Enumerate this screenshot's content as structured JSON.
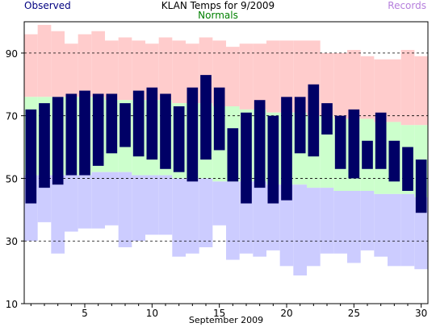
{
  "chart_data": {
    "type": "bar",
    "title": "KLAN Temps for 9/2009",
    "xlabel": "September 2009",
    "ylabel": "",
    "legend": [
      {
        "name": "Observed",
        "color": "#000080"
      },
      {
        "name": "Normals",
        "color": "#008000"
      },
      {
        "name": "Records",
        "color": "#b57edc"
      }
    ],
    "ylim": [
      10,
      100
    ],
    "yticks": [
      10,
      30,
      50,
      70,
      90
    ],
    "xticks": [
      5,
      10,
      15,
      20,
      25,
      30
    ],
    "xlim": [
      0.5,
      30.5
    ],
    "days": [
      1,
      2,
      3,
      4,
      5,
      6,
      7,
      8,
      9,
      10,
      11,
      12,
      13,
      14,
      15,
      16,
      17,
      18,
      19,
      20,
      21,
      22,
      23,
      24,
      25,
      26,
      27,
      28,
      29,
      30
    ],
    "series": [
      {
        "name": "Observed",
        "high": [
          72,
          74,
          76,
          77,
          78,
          77,
          77,
          74,
          78,
          79,
          77,
          73,
          79,
          83,
          79,
          66,
          71,
          75,
          70,
          76,
          76,
          80,
          74,
          70,
          72,
          62,
          71,
          62,
          60,
          56
        ],
        "low": [
          42,
          47,
          48,
          51,
          51,
          54,
          58,
          60,
          57,
          56,
          53,
          52,
          49,
          56,
          59,
          49,
          42,
          47,
          42,
          43,
          58,
          57,
          64,
          53,
          50,
          53,
          53,
          49,
          46,
          39
        ]
      },
      {
        "name": "Normals",
        "high": [
          76,
          76,
          76,
          76,
          76,
          76,
          75,
          75,
          75,
          75,
          75,
          74,
          74,
          74,
          73,
          73,
          72,
          72,
          71,
          71,
          71,
          70,
          70,
          69,
          69,
          69,
          68,
          68,
          67,
          67
        ],
        "low": [
          51,
          51,
          51,
          51,
          51,
          52,
          52,
          52,
          51,
          51,
          51,
          50,
          50,
          50,
          49,
          49,
          49,
          49,
          48,
          48,
          48,
          47,
          47,
          46,
          46,
          46,
          45,
          45,
          45,
          44
        ]
      },
      {
        "name": "Records",
        "high": [
          96,
          99,
          97,
          93,
          96,
          97,
          94,
          95,
          94,
          93,
          95,
          94,
          93,
          95,
          94,
          92,
          93,
          93,
          94,
          94,
          94,
          94,
          90,
          90,
          91,
          89,
          88,
          88,
          91,
          89
        ],
        "low": [
          30,
          36,
          26,
          33,
          34,
          34,
          35,
          28,
          30,
          32,
          32,
          25,
          26,
          28,
          35,
          24,
          26,
          25,
          27,
          22,
          19,
          22,
          26,
          26,
          23,
          27,
          25,
          22,
          22,
          21
        ]
      }
    ],
    "colors": {
      "observed": "#000066",
      "normals": "#ccffcc",
      "records_high": "#ffcccc",
      "records_low": "#ccccff",
      "grid": "#000000"
    }
  }
}
